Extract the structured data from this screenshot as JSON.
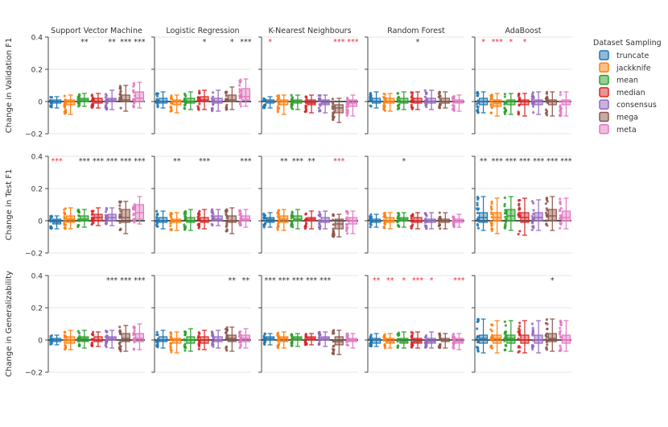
{
  "chart_data": {
    "type": "box",
    "columns": [
      "Support Vector Machine",
      "Logistic Regression",
      "K-Nearest Neighbours",
      "Random Forest",
      "AdaBoost"
    ],
    "rows": [
      "Change in Validation F1",
      "Change in Test F1",
      "Change in Generalizability"
    ],
    "y_range": [
      -0.2,
      0.4
    ],
    "y_ticks": [
      -0.2,
      0,
      0.2,
      0.4
    ],
    "y_tick_labels": [
      "−0.2",
      "0",
      "0.2",
      "0.4"
    ],
    "legend": {
      "title": "Dataset Sampling",
      "position": "top-right",
      "items": [
        "truncate",
        "jackknife",
        "mean",
        "median",
        "consensus",
        "mega",
        "meta"
      ]
    },
    "series_colors": {
      "truncate": "#1f77b4",
      "jackknife": "#ff7f0e",
      "mean": "#2ca02c",
      "median": "#d62728",
      "consensus": "#9467bd",
      "mega": "#8c564b",
      "meta": "#e377c2"
    },
    "panels": [
      {
        "row": 0,
        "col": 0,
        "sig": [
          "",
          "",
          "**",
          "",
          "**",
          "***",
          "***"
        ],
        "sig_red": [
          false,
          false,
          false,
          false,
          false,
          false,
          false
        ],
        "boxes": [
          [
            -0.04,
            -0.01,
            0.0,
            0.01,
            0.03
          ],
          [
            -0.08,
            -0.02,
            0.0,
            0.01,
            0.04
          ],
          [
            -0.03,
            0.0,
            0.01,
            0.02,
            0.05
          ],
          [
            -0.04,
            -0.01,
            0.0,
            0.02,
            0.05
          ],
          [
            -0.05,
            0.0,
            0.01,
            0.02,
            0.07
          ],
          [
            -0.06,
            0.0,
            0.01,
            0.04,
            0.1
          ],
          [
            -0.04,
            0.0,
            0.02,
            0.06,
            0.12
          ]
        ]
      },
      {
        "row": 0,
        "col": 1,
        "sig": [
          "",
          "",
          "",
          "*",
          "",
          "*",
          "***"
        ],
        "sig_red": [
          false,
          false,
          false,
          false,
          false,
          false,
          false
        ],
        "boxes": [
          [
            -0.04,
            -0.01,
            0.0,
            0.02,
            0.06
          ],
          [
            -0.07,
            -0.02,
            0.0,
            0.01,
            0.04
          ],
          [
            -0.05,
            -0.01,
            0.0,
            0.02,
            0.06
          ],
          [
            -0.05,
            0.0,
            0.01,
            0.03,
            0.07
          ],
          [
            -0.06,
            -0.01,
            0.0,
            0.02,
            0.07
          ],
          [
            -0.05,
            0.0,
            0.01,
            0.04,
            0.09
          ],
          [
            -0.03,
            0.01,
            0.03,
            0.08,
            0.14
          ]
        ]
      },
      {
        "row": 0,
        "col": 2,
        "sig": [
          "*",
          "",
          "",
          "",
          "",
          "***",
          "***"
        ],
        "sig_red": [
          true,
          false,
          false,
          false,
          false,
          true,
          true
        ],
        "boxes": [
          [
            -0.04,
            -0.01,
            0.0,
            0.01,
            0.03
          ],
          [
            -0.08,
            -0.02,
            0.0,
            0.01,
            0.04
          ],
          [
            -0.05,
            -0.01,
            0.0,
            0.01,
            0.04
          ],
          [
            -0.07,
            -0.02,
            -0.01,
            0.01,
            0.04
          ],
          [
            -0.07,
            -0.02,
            -0.01,
            0.01,
            0.04
          ],
          [
            -0.13,
            -0.07,
            -0.04,
            -0.02,
            0.02
          ],
          [
            -0.09,
            -0.03,
            -0.01,
            0.01,
            0.04
          ]
        ]
      },
      {
        "row": 0,
        "col": 3,
        "sig": [
          "",
          "",
          "",
          "*",
          "",
          "",
          ""
        ],
        "sig_red": [
          false,
          false,
          false,
          false,
          false,
          false,
          false
        ],
        "boxes": [
          [
            -0.04,
            -0.01,
            0.0,
            0.02,
            0.06
          ],
          [
            -0.06,
            -0.01,
            0.0,
            0.02,
            0.05
          ],
          [
            -0.05,
            -0.01,
            0.0,
            0.02,
            0.06
          ],
          [
            -0.05,
            -0.01,
            0.0,
            0.02,
            0.06
          ],
          [
            -0.05,
            -0.01,
            0.0,
            0.02,
            0.07
          ],
          [
            -0.04,
            -0.01,
            0.0,
            0.02,
            0.06
          ],
          [
            -0.06,
            -0.01,
            0.0,
            0.01,
            0.04
          ]
        ]
      },
      {
        "row": 0,
        "col": 4,
        "sig": [
          "*",
          "***",
          "*",
          "*",
          "",
          "",
          ""
        ],
        "sig_red": [
          true,
          true,
          true,
          true,
          false,
          false,
          false
        ],
        "boxes": [
          [
            -0.07,
            -0.02,
            0.0,
            0.02,
            0.06
          ],
          [
            -0.09,
            -0.03,
            -0.01,
            0.01,
            0.05
          ],
          [
            -0.08,
            -0.02,
            0.0,
            0.01,
            0.05
          ],
          [
            -0.09,
            -0.02,
            0.0,
            0.01,
            0.05
          ],
          [
            -0.08,
            -0.02,
            0.0,
            0.01,
            0.06
          ],
          [
            -0.09,
            -0.02,
            0.0,
            0.01,
            0.06
          ],
          [
            -0.09,
            -0.02,
            0.0,
            0.01,
            0.06
          ]
        ]
      },
      {
        "row": 1,
        "col": 0,
        "sig": [
          "***",
          "",
          "***",
          "***",
          "***",
          "***",
          "***"
        ],
        "sig_red": [
          true,
          false,
          false,
          false,
          false,
          false,
          false
        ],
        "boxes": [
          [
            -0.05,
            -0.02,
            -0.01,
            0.01,
            0.03
          ],
          [
            -0.05,
            -0.01,
            0.01,
            0.03,
            0.08
          ],
          [
            -0.04,
            0.0,
            0.01,
            0.03,
            0.07
          ],
          [
            -0.03,
            0.0,
            0.02,
            0.04,
            0.08
          ],
          [
            -0.03,
            0.0,
            0.02,
            0.04,
            0.08
          ],
          [
            -0.08,
            -0.01,
            0.02,
            0.07,
            0.12
          ],
          [
            -0.02,
            0.01,
            0.05,
            0.1,
            0.15
          ]
        ]
      },
      {
        "row": 1,
        "col": 1,
        "sig": [
          "",
          "**",
          "",
          "***",
          "",
          "",
          "***"
        ],
        "sig_red": [
          false,
          false,
          false,
          false,
          false,
          false,
          false
        ],
        "boxes": [
          [
            -0.05,
            -0.01,
            0.0,
            0.02,
            0.06
          ],
          [
            -0.06,
            -0.01,
            0.0,
            0.01,
            0.05
          ],
          [
            -0.06,
            -0.01,
            0.0,
            0.02,
            0.07
          ],
          [
            -0.05,
            -0.01,
            0.0,
            0.02,
            0.07
          ],
          [
            -0.03,
            0.0,
            0.01,
            0.03,
            0.07
          ],
          [
            -0.08,
            -0.01,
            0.0,
            0.03,
            0.08
          ],
          [
            -0.04,
            0.0,
            0.01,
            0.03,
            0.07
          ]
        ]
      },
      {
        "row": 1,
        "col": 2,
        "sig": [
          "",
          "**",
          "***",
          "**",
          "",
          "***",
          ""
        ],
        "sig_red": [
          false,
          false,
          false,
          false,
          false,
          true,
          false
        ],
        "boxes": [
          [
            -0.04,
            -0.01,
            0.01,
            0.02,
            0.05
          ],
          [
            -0.06,
            -0.01,
            0.01,
            0.03,
            0.07
          ],
          [
            -0.05,
            0.0,
            0.01,
            0.03,
            0.07
          ],
          [
            -0.05,
            0.0,
            0.01,
            0.02,
            0.06
          ],
          [
            -0.05,
            -0.01,
            0.0,
            0.02,
            0.06
          ],
          [
            -0.1,
            -0.05,
            -0.02,
            0.01,
            0.04
          ],
          [
            -0.08,
            -0.02,
            0.0,
            0.02,
            0.06
          ]
        ]
      },
      {
        "row": 1,
        "col": 3,
        "sig": [
          "",
          "",
          "*",
          "",
          "",
          "",
          ""
        ],
        "sig_red": [
          false,
          false,
          false,
          false,
          false,
          false,
          false
        ],
        "boxes": [
          [
            -0.04,
            -0.01,
            0.0,
            0.01,
            0.04
          ],
          [
            -0.05,
            -0.01,
            0.0,
            0.02,
            0.05
          ],
          [
            -0.04,
            0.0,
            0.01,
            0.02,
            0.05
          ],
          [
            -0.05,
            -0.01,
            0.0,
            0.02,
            0.05
          ],
          [
            -0.05,
            -0.01,
            0.0,
            0.01,
            0.05
          ],
          [
            -0.05,
            -0.01,
            0.0,
            0.01,
            0.05
          ],
          [
            -0.04,
            -0.01,
            0.0,
            0.01,
            0.04
          ]
        ]
      },
      {
        "row": 1,
        "col": 4,
        "sig": [
          "**",
          "***",
          "***",
          "***",
          "***",
          "***",
          "***"
        ],
        "sig_red": [
          false,
          false,
          false,
          false,
          false,
          false,
          false
        ],
        "boxes": [
          [
            -0.06,
            -0.01,
            0.02,
            0.05,
            0.15
          ],
          [
            -0.08,
            0.0,
            0.02,
            0.05,
            0.14
          ],
          [
            -0.06,
            0.0,
            0.03,
            0.07,
            0.15
          ],
          [
            -0.09,
            -0.01,
            0.02,
            0.05,
            0.14
          ],
          [
            -0.06,
            0.0,
            0.02,
            0.05,
            0.13
          ],
          [
            -0.06,
            0.0,
            0.03,
            0.07,
            0.15
          ],
          [
            -0.05,
            0.0,
            0.02,
            0.06,
            0.14
          ]
        ]
      },
      {
        "row": 2,
        "col": 0,
        "sig": [
          "",
          "",
          "",
          "",
          "***",
          "***",
          "***"
        ],
        "sig_red": [
          false,
          false,
          false,
          false,
          false,
          false,
          false
        ],
        "boxes": [
          [
            -0.03,
            -0.01,
            0.0,
            0.01,
            0.03
          ],
          [
            -0.06,
            -0.02,
            0.0,
            0.02,
            0.06
          ],
          [
            -0.05,
            -0.01,
            0.01,
            0.02,
            0.06
          ],
          [
            -0.04,
            -0.01,
            0.0,
            0.02,
            0.05
          ],
          [
            -0.05,
            0.0,
            0.01,
            0.02,
            0.06
          ],
          [
            -0.07,
            -0.01,
            0.01,
            0.04,
            0.09
          ],
          [
            -0.06,
            -0.01,
            0.01,
            0.04,
            0.1
          ]
        ]
      },
      {
        "row": 2,
        "col": 1,
        "sig": [
          "",
          "",
          "",
          "",
          "",
          "**",
          "**"
        ],
        "sig_red": [
          false,
          false,
          false,
          false,
          false,
          false,
          false
        ],
        "boxes": [
          [
            -0.05,
            -0.01,
            0.0,
            0.02,
            0.06
          ],
          [
            -0.08,
            -0.02,
            0.0,
            0.01,
            0.05
          ],
          [
            -0.07,
            -0.02,
            0.0,
            0.02,
            0.07
          ],
          [
            -0.06,
            -0.02,
            0.0,
            0.02,
            0.06
          ],
          [
            -0.05,
            -0.01,
            0.0,
            0.02,
            0.06
          ],
          [
            -0.07,
            -0.01,
            0.01,
            0.03,
            0.08
          ],
          [
            -0.05,
            -0.01,
            0.01,
            0.03,
            0.07
          ]
        ]
      },
      {
        "row": 2,
        "col": 2,
        "sig": [
          "***",
          "***",
          "***",
          "***",
          "***",
          "",
          ""
        ],
        "sig_red": [
          false,
          false,
          false,
          false,
          false,
          false,
          false
        ],
        "boxes": [
          [
            -0.03,
            0.0,
            0.01,
            0.02,
            0.04
          ],
          [
            -0.05,
            -0.01,
            0.01,
            0.02,
            0.05
          ],
          [
            -0.04,
            0.0,
            0.01,
            0.02,
            0.04
          ],
          [
            -0.03,
            0.0,
            0.01,
            0.02,
            0.04
          ],
          [
            -0.04,
            0.0,
            0.01,
            0.02,
            0.05
          ],
          [
            -0.09,
            -0.03,
            -0.01,
            0.02,
            0.06
          ],
          [
            -0.05,
            -0.01,
            0.0,
            0.01,
            0.04
          ]
        ]
      },
      {
        "row": 2,
        "col": 3,
        "sig": [
          "**",
          "**",
          "*",
          "***",
          "*",
          "",
          "***"
        ],
        "sig_red": [
          true,
          true,
          true,
          true,
          true,
          false,
          true
        ],
        "boxes": [
          [
            -0.04,
            -0.02,
            0.0,
            0.01,
            0.04
          ],
          [
            -0.05,
            -0.02,
            -0.01,
            0.01,
            0.04
          ],
          [
            -0.05,
            -0.02,
            -0.01,
            0.01,
            0.05
          ],
          [
            -0.05,
            -0.02,
            -0.01,
            0.01,
            0.05
          ],
          [
            -0.05,
            -0.02,
            -0.01,
            0.01,
            0.05
          ],
          [
            -0.05,
            -0.01,
            0.0,
            0.01,
            0.04
          ],
          [
            -0.06,
            -0.02,
            -0.01,
            0.01,
            0.04
          ]
        ]
      },
      {
        "row": 2,
        "col": 4,
        "sig": [
          "",
          "",
          "",
          "",
          "",
          "*",
          ""
        ],
        "sig_red": [
          false,
          false,
          false,
          false,
          false,
          false,
          false
        ],
        "boxes": [
          [
            -0.08,
            -0.02,
            0.01,
            0.03,
            0.13
          ],
          [
            -0.08,
            -0.02,
            0.01,
            0.03,
            0.12
          ],
          [
            -0.07,
            -0.02,
            0.01,
            0.03,
            0.12
          ],
          [
            -0.08,
            -0.02,
            0.0,
            0.03,
            0.12
          ],
          [
            -0.08,
            -0.02,
            0.0,
            0.03,
            0.12
          ],
          [
            -0.07,
            -0.01,
            0.01,
            0.04,
            0.13
          ],
          [
            -0.07,
            -0.02,
            0.0,
            0.03,
            0.12
          ]
        ]
      }
    ]
  }
}
